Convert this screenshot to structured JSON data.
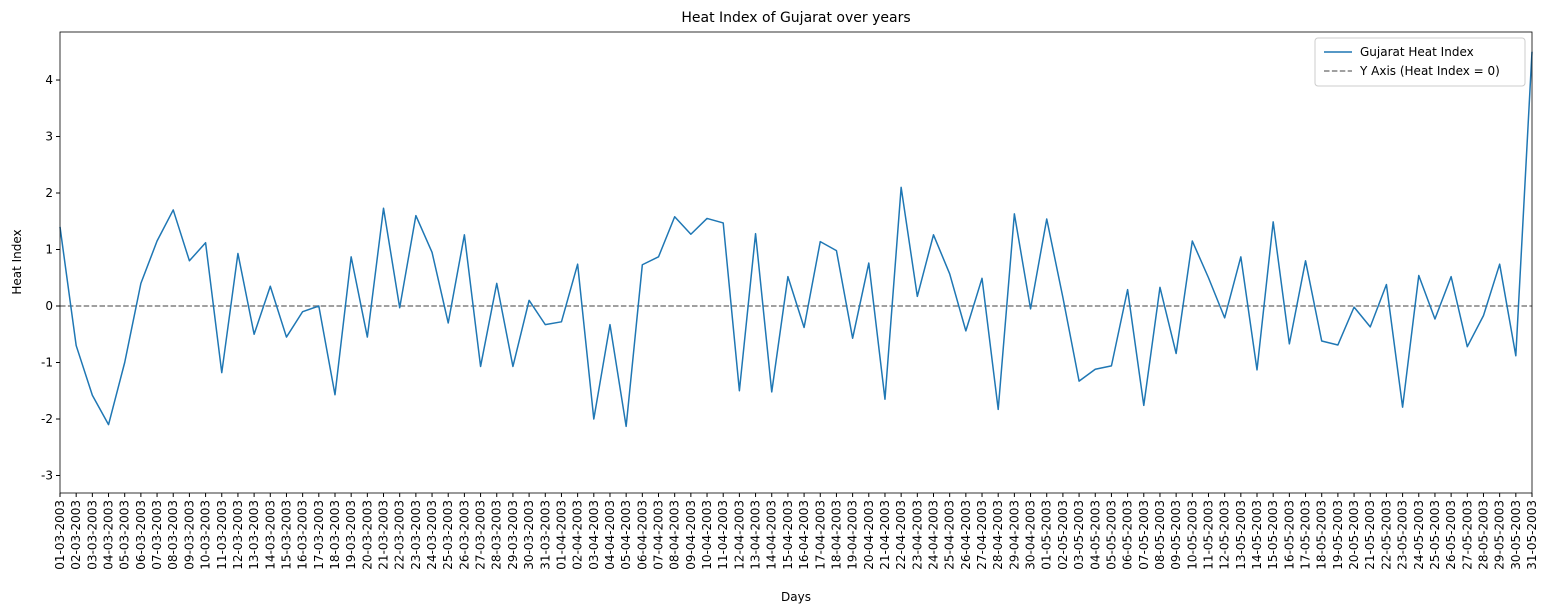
{
  "chart_data": {
    "type": "line",
    "title": "Heat Index of Gujarat over years",
    "xlabel": "Days",
    "ylabel": "Heat Index",
    "categories": [
      "01-03-2003",
      "02-03-2003",
      "03-03-2003",
      "04-03-2003",
      "05-03-2003",
      "06-03-2003",
      "07-03-2003",
      "08-03-2003",
      "09-03-2003",
      "10-03-2003",
      "11-03-2003",
      "12-03-2003",
      "13-03-2003",
      "14-03-2003",
      "15-03-2003",
      "16-03-2003",
      "17-03-2003",
      "18-03-2003",
      "19-03-2003",
      "20-03-2003",
      "21-03-2003",
      "22-03-2003",
      "23-03-2003",
      "24-03-2003",
      "25-03-2003",
      "26-03-2003",
      "27-03-2003",
      "28-03-2003",
      "29-03-2003",
      "30-03-2003",
      "31-03-2003",
      "01-04-2003",
      "02-04-2003",
      "03-04-2003",
      "04-04-2003",
      "05-04-2003",
      "06-04-2003",
      "07-04-2003",
      "08-04-2003",
      "09-04-2003",
      "10-04-2003",
      "11-04-2003",
      "12-04-2003",
      "13-04-2003",
      "14-04-2003",
      "15-04-2003",
      "16-04-2003",
      "17-04-2003",
      "18-04-2003",
      "19-04-2003",
      "20-04-2003",
      "21-04-2003",
      "22-04-2003",
      "23-04-2003",
      "24-04-2003",
      "25-04-2003",
      "26-04-2003",
      "27-04-2003",
      "28-04-2003",
      "29-04-2003",
      "30-04-2003",
      "01-05-2003",
      "02-05-2003",
      "03-05-2003",
      "04-05-2003",
      "05-05-2003",
      "06-05-2003",
      "07-05-2003",
      "08-05-2003",
      "09-05-2003",
      "10-05-2003",
      "11-05-2003",
      "12-05-2003",
      "13-05-2003",
      "14-05-2003",
      "15-05-2003",
      "16-05-2003",
      "17-05-2003",
      "18-05-2003",
      "19-05-2003",
      "20-05-2003",
      "21-05-2003",
      "22-05-2003",
      "23-05-2003",
      "24-05-2003",
      "25-05-2003",
      "26-05-2003",
      "27-05-2003",
      "28-05-2003",
      "29-05-2003",
      "30-05-2003",
      "31-05-2003"
    ],
    "series": [
      {
        "name": "Gujarat Heat Index",
        "color": "#1f77b4",
        "values": [
          1.4,
          -0.7,
          -1.58,
          -2.1,
          -1.0,
          0.4,
          1.15,
          1.7,
          0.8,
          1.12,
          -1.18,
          0.93,
          -0.5,
          0.35,
          -0.55,
          -0.1,
          0.0,
          -1.57,
          0.87,
          -0.55,
          1.73,
          -0.03,
          1.6,
          0.95,
          -0.3,
          1.26,
          -1.07,
          0.4,
          -1.07,
          0.1,
          -0.33,
          -0.28,
          0.74,
          -2.0,
          -0.33,
          -2.13,
          0.73,
          0.87,
          1.58,
          1.27,
          1.55,
          1.47,
          -1.5,
          1.28,
          -1.52,
          0.52,
          -0.38,
          1.14,
          0.98,
          -0.57,
          0.76,
          -1.65,
          2.1,
          0.17,
          1.26,
          0.57,
          -0.44,
          0.49,
          -1.83,
          1.63,
          -0.05,
          1.54,
          0.15,
          -1.33,
          -1.12,
          -1.06,
          0.29,
          -1.76,
          0.33,
          -0.84,
          1.15,
          0.5,
          -0.21,
          0.87,
          -1.13,
          1.49,
          -0.67,
          0.8,
          -0.62,
          -0.69,
          -0.02,
          -0.37,
          0.38,
          -1.79,
          0.54,
          -0.23,
          0.52,
          -0.72,
          -0.17,
          0.74,
          -0.88,
          4.5
        ]
      }
    ],
    "reference_line": {
      "name": "Y Axis (Heat Index = 0)",
      "y": 0,
      "color": "#808080",
      "dashed": true
    },
    "ylim": [
      -3.31,
      4.85
    ],
    "yticks": [
      -3,
      -2,
      -1,
      0,
      1,
      2,
      3,
      4
    ],
    "legend": "upper right",
    "grid": false
  }
}
